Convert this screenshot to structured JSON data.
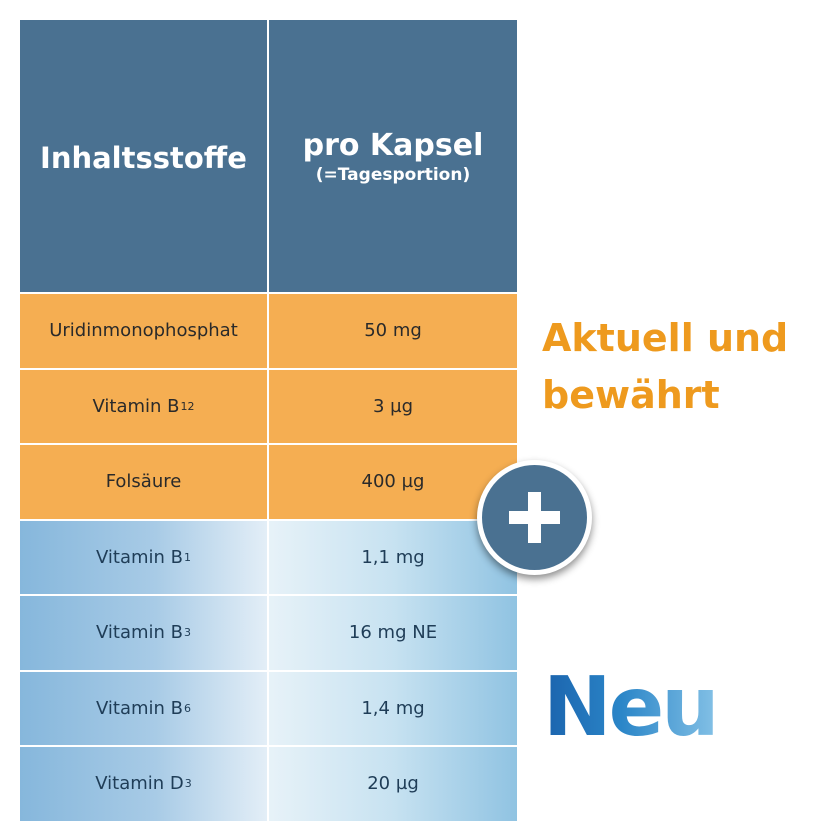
{
  "header": {
    "col1": "Inhaltsstoffe",
    "col2_main": "pro Kapsel",
    "col2_sub": "(=Tagesportion)"
  },
  "rows": [
    {
      "name": "Uridinmonophosphat",
      "sub": "",
      "amount": "50 mg",
      "group": "orange"
    },
    {
      "name": "Vitamin B",
      "sub": "12",
      "amount": "3 µg",
      "group": "orange"
    },
    {
      "name": "Folsäure",
      "sub": "",
      "amount": "400 µg",
      "group": "orange"
    },
    {
      "name": "Vitamin B",
      "sub": "1",
      "amount": "1,1 mg",
      "group": "blue"
    },
    {
      "name": "Vitamin B",
      "sub": "3",
      "amount": "16 mg NE",
      "group": "blue"
    },
    {
      "name": "Vitamin B",
      "sub": "6",
      "amount": "1,4 mg",
      "group": "blue"
    },
    {
      "name": "Vitamin D",
      "sub": "3",
      "amount": "20 µg",
      "group": "blue"
    }
  ],
  "side": {
    "orange_line1": "Aktuell und",
    "orange_line2": "bewährt",
    "new_label": "Neu"
  },
  "colors": {
    "header_blue": "#4a7191",
    "orange_rows": "#f5ae52",
    "orange_text": "#ee9a1e",
    "new_blue": "#1b63ad"
  },
  "icons": {
    "badge": "plus-icon"
  }
}
